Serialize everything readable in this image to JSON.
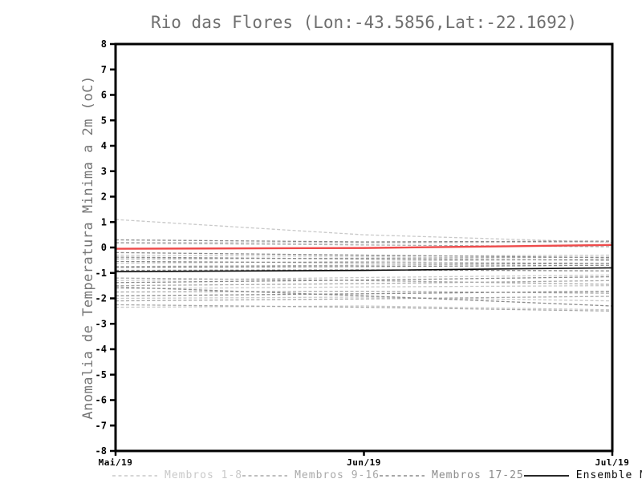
{
  "title": "Rio das Flores (Lon:-43.5856,Lat:-22.1692)",
  "chart_data": {
    "type": "line",
    "x_labels": [
      "Mai/19",
      "Jun/19",
      "Jul/19"
    ],
    "xlabel": "",
    "ylabel": "Anomalia de Temperatura Minima a 2m (oC)",
    "ylim": [
      -8,
      8
    ],
    "ytick_step": 1,
    "grid": false,
    "legend_position": "bottom",
    "axis_color": "#000000",
    "background": "#ffffff",
    "series": [
      {
        "name": "Membros 1-8",
        "color": "#c9c9c9",
        "style": "dashed",
        "width": 1.3,
        "in_legend": true,
        "members": [
          [
            1.1,
            0.5,
            0.2
          ],
          [
            0.2,
            0.18,
            0.22
          ],
          [
            -0.3,
            -0.35,
            -0.3
          ],
          [
            -0.62,
            -0.55,
            -0.45
          ],
          [
            -1.3,
            -1.18,
            -1.08
          ],
          [
            -1.62,
            -1.55,
            -1.5
          ],
          [
            -2.0,
            -1.95,
            -2.1
          ],
          [
            -2.35,
            -2.3,
            -2.45
          ]
        ]
      },
      {
        "name": "Membros 9-16",
        "color": "#a9a9a9",
        "style": "dashed",
        "width": 1.3,
        "in_legend": true,
        "members": [
          [
            0.18,
            0.1,
            0.03
          ],
          [
            -0.45,
            -0.42,
            -0.38
          ],
          [
            -0.75,
            -0.7,
            -0.62
          ],
          [
            -1.2,
            -1.3,
            -1.45
          ],
          [
            -1.5,
            -1.42,
            -1.3
          ],
          [
            -1.75,
            -1.72,
            -1.8
          ],
          [
            -2.1,
            -2.02,
            -1.92
          ],
          [
            -2.25,
            -2.35,
            -2.5
          ]
        ]
      },
      {
        "name": "Membros 17-25",
        "color": "#8b8b8b",
        "style": "dashed",
        "width": 1.3,
        "in_legend": true,
        "members": [
          [
            0.3,
            0.22,
            0.25
          ],
          [
            -0.2,
            -0.3,
            -0.4
          ],
          [
            -0.38,
            -0.45,
            -0.5
          ],
          [
            -0.55,
            -0.6,
            -0.62
          ],
          [
            -0.78,
            -0.75,
            -0.7
          ],
          [
            -0.9,
            -0.88,
            -0.92
          ],
          [
            -1.38,
            -1.28,
            -1.15
          ],
          [
            -1.55,
            -1.9,
            -2.3
          ],
          [
            -1.9,
            -1.82,
            -1.72
          ]
        ]
      },
      {
        "name": "Ensemble Mean",
        "color": "#0a0a0a",
        "style": "solid",
        "width": 1.6,
        "in_legend": true,
        "members": [
          [
            -0.95,
            -0.9,
            -0.8
          ]
        ]
      },
      {
        "name": "",
        "color": "#ee4b4b",
        "style": "solid",
        "width": 2.4,
        "in_legend": false,
        "members": [
          [
            -0.05,
            -0.02,
            0.1
          ]
        ]
      }
    ]
  }
}
